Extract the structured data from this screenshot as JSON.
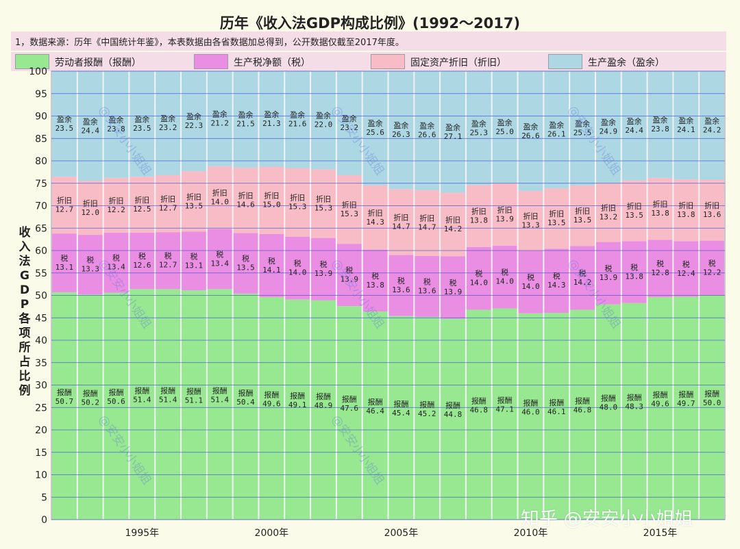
{
  "chart_data": {
    "type": "bar",
    "stacked": true,
    "title": "历年《收入法GDP构成比例》(1992～2017)",
    "note": "1，数据来源：历年《中国统计年鉴》，本表数据由各省数据加总得到，公开数据仅截至2017年度。",
    "ylabel": "收入法GDP各项所占比例",
    "ylim": [
      0,
      100
    ],
    "yticks": [
      0,
      5,
      10,
      15,
      20,
      25,
      30,
      35,
      40,
      45,
      50,
      55,
      60,
      65,
      70,
      75,
      80,
      85,
      90,
      95,
      100
    ],
    "categories": [
      1992,
      1993,
      1994,
      1995,
      1996,
      1997,
      1998,
      1999,
      2000,
      2001,
      2002,
      2003,
      2004,
      2005,
      2006,
      2007,
      2008,
      2009,
      2010,
      2011,
      2012,
      2013,
      2014,
      2015,
      2016,
      2017
    ],
    "xticklabels": [
      "1995年",
      "2000年",
      "2005年",
      "2010年",
      "2015年"
    ],
    "xtick_years": [
      1995,
      2000,
      2005,
      2010,
      2015
    ],
    "series": [
      {
        "name": "劳动者报酬（报酬）",
        "short": "报酬",
        "color": "#97e890",
        "values": [
          50.7,
          50.2,
          50.6,
          51.4,
          51.4,
          51.1,
          51.4,
          50.4,
          49.6,
          49.1,
          48.9,
          47.6,
          46.4,
          45.4,
          45.2,
          44.8,
          46.8,
          47.1,
          46.0,
          46.1,
          46.8,
          48.0,
          48.3,
          49.6,
          49.7,
          50.0
        ]
      },
      {
        "name": "生产税净额（税）",
        "short": "税",
        "color": "#e98ee3",
        "values": [
          13.1,
          13.3,
          13.4,
          12.6,
          12.7,
          13.1,
          13.4,
          13.5,
          14.1,
          14.0,
          13.9,
          13.9,
          13.8,
          13.6,
          13.6,
          13.9,
          14.0,
          14.0,
          14.0,
          14.3,
          14.2,
          13.9,
          13.8,
          12.8,
          12.4,
          12.2
        ]
      },
      {
        "name": "固定资产折旧（折旧）",
        "short": "折旧",
        "color": "#f8bcc6",
        "values": [
          12.7,
          12.0,
          12.2,
          12.5,
          12.7,
          13.5,
          14.0,
          14.6,
          15.0,
          15.3,
          15.3,
          15.3,
          14.3,
          14.7,
          14.7,
          14.2,
          13.8,
          13.9,
          13.3,
          13.5,
          13.5,
          13.2,
          13.5,
          13.8,
          13.8,
          13.6
        ]
      },
      {
        "name": "生产盈余（盈余）",
        "short": "盈余",
        "color": "#acd7e3",
        "values": [
          23.5,
          24.4,
          23.8,
          23.5,
          23.2,
          22.3,
          21.2,
          21.5,
          21.3,
          21.6,
          22.0,
          23.2,
          25.6,
          26.3,
          26.6,
          27.1,
          25.3,
          25.0,
          26.6,
          26.1,
          25.5,
          24.9,
          24.4,
          23.8,
          24.1,
          24.2
        ]
      }
    ]
  },
  "watermarks": [
    "@安安小小姐姐",
    "@安安小小姐姐",
    "@安安小小姐姐",
    "@安安小小姐姐",
    "@安安小小姐姐",
    "@安安小小姐姐",
    "@安安小小姐姐",
    "@安安小小姐姐"
  ],
  "brand_watermark": "知乎 @安安小小姐姐"
}
